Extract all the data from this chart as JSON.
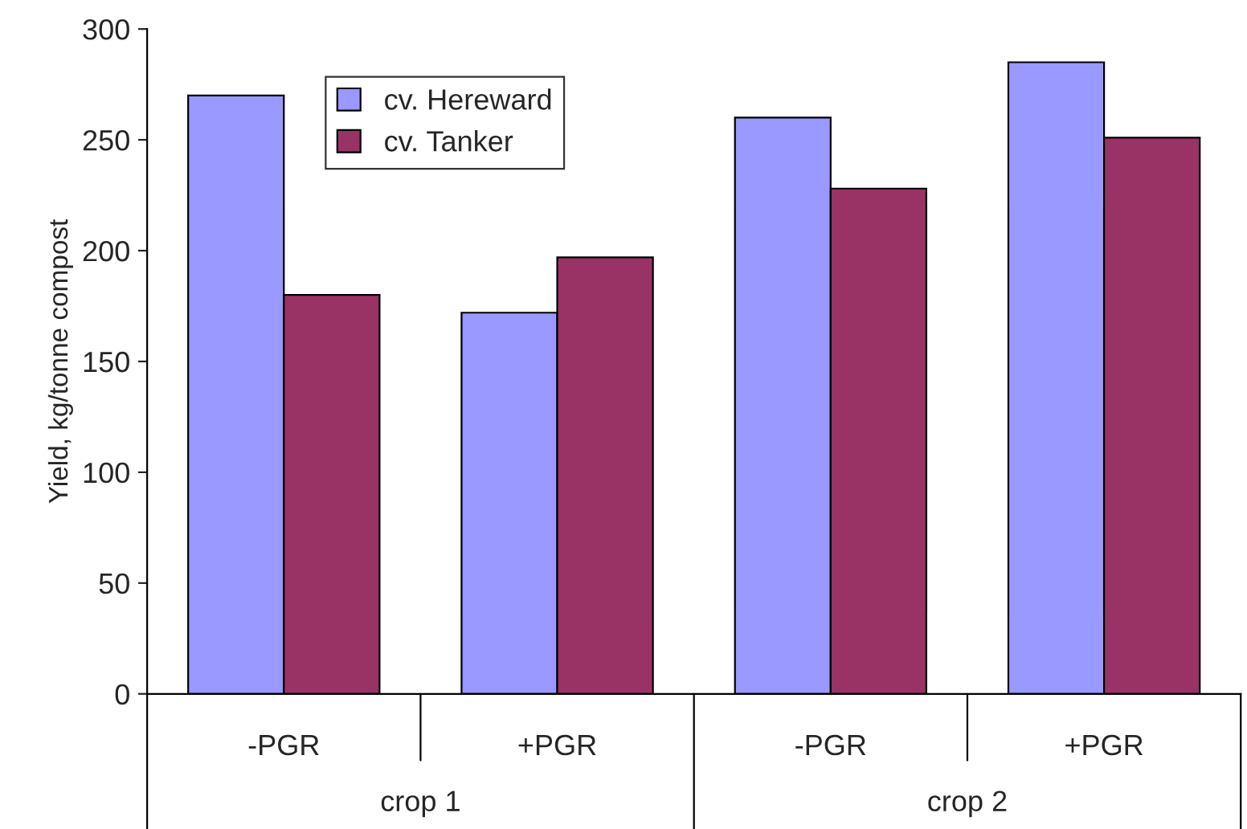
{
  "chart_data": {
    "type": "bar",
    "ylabel": "Yield, kg/tonne compost",
    "categories": [
      "-PGR",
      "+PGR",
      "-PGR",
      "+PGR"
    ],
    "series": [
      {
        "name": "cv. Hereward",
        "color": "#9999ff",
        "values": [
          270,
          172,
          260,
          285
        ]
      },
      {
        "name": "cv. Tanker",
        "color": "#993366",
        "values": [
          180,
          197,
          228,
          251
        ]
      }
    ],
    "annotations": [
      "crop 1",
      "crop 2"
    ],
    "ylim": [
      0,
      300
    ],
    "yticks": [
      0,
      50,
      100,
      150,
      200,
      250,
      300
    ],
    "grid": false,
    "legend": "top left"
  }
}
